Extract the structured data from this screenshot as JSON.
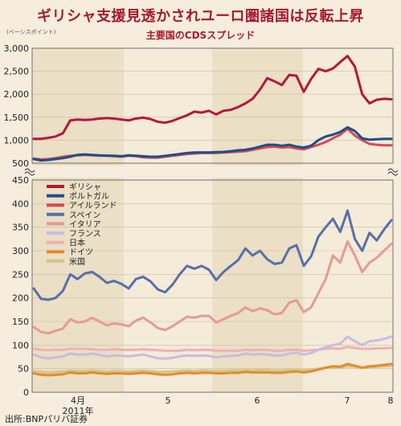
{
  "header": {
    "title": "ギリシャ支援見透かされユーロ圏諸国は反転上昇",
    "subtitle": "主要国のCDSスプレッド",
    "unit": "(ベーシスポイント)"
  },
  "footer": {
    "source": "出所:BNPパリバ証券"
  },
  "colors": {
    "background": "#f6eddf",
    "plot_band": "#ebdfc6",
    "plot_light": "#f4ebd9",
    "grid": "#c9bca3"
  },
  "chart_data": {
    "type": "line",
    "title": "主要国のCDSスプレッド",
    "ylabel": "(ベーシスポイント)",
    "x_ticks": [
      "4月",
      "5",
      "6",
      "7",
      "8"
    ],
    "x_sublabel": "2011年",
    "upper_axis": {
      "ylim": [
        500,
        3000
      ],
      "ticks": [
        "3,000",
        "2,500",
        "2,000",
        "1,500",
        "1,000",
        "500"
      ]
    },
    "lower_axis": {
      "ylim": [
        0,
        450
      ],
      "ticks": [
        "450",
        "400",
        "350",
        "300",
        "250",
        "200",
        "150",
        "100",
        "50",
        "0"
      ]
    },
    "legend_position": "top-left",
    "series": [
      {
        "name": "ギリシャ",
        "color": "#b5173a",
        "axis": "upper",
        "values": [
          1030,
          1030,
          1050,
          1080,
          1150,
          1430,
          1450,
          1440,
          1450,
          1470,
          1480,
          1470,
          1450,
          1430,
          1470,
          1490,
          1460,
          1400,
          1380,
          1420,
          1480,
          1540,
          1620,
          1600,
          1640,
          1560,
          1640,
          1660,
          1720,
          1800,
          1900,
          2100,
          2350,
          2280,
          2200,
          2420,
          2400,
          2050,
          2330,
          2550,
          2500,
          2560,
          2700,
          2830,
          2600,
          2000,
          1800,
          1880,
          1900,
          1890
        ]
      },
      {
        "name": "ポルトガル",
        "color": "#1d4f8a",
        "axis": "upper",
        "values": [
          590,
          560,
          570,
          590,
          610,
          640,
          680,
          690,
          680,
          670,
          665,
          660,
          650,
          670,
          660,
          650,
          640,
          640,
          660,
          680,
          700,
          720,
          730,
          735,
          735,
          740,
          745,
          760,
          780,
          790,
          820,
          860,
          900,
          900,
          880,
          900,
          860,
          840,
          880,
          1000,
          1080,
          1120,
          1180,
          1280,
          1200,
          1040,
          1010,
          1020,
          1030,
          1030
        ]
      },
      {
        "name": "アイルランド",
        "color": "#d84a52",
        "axis": "upper",
        "values": [
          600,
          580,
          590,
          610,
          640,
          660,
          670,
          680,
          670,
          660,
          660,
          650,
          640,
          660,
          650,
          630,
          620,
          620,
          640,
          660,
          680,
          700,
          710,
          720,
          720,
          720,
          730,
          740,
          750,
          760,
          790,
          820,
          850,
          860,
          840,
          850,
          820,
          800,
          850,
          900,
          960,
          1040,
          1120,
          1250,
          1100,
          1000,
          920,
          900,
          890,
          890
        ]
      },
      {
        "name": "スペイン",
        "color": "#5870a8",
        "axis": "lower",
        "values": [
          220,
          198,
          196,
          200,
          215,
          250,
          240,
          252,
          255,
          245,
          232,
          236,
          230,
          220,
          240,
          245,
          235,
          218,
          212,
          228,
          250,
          268,
          262,
          268,
          260,
          238,
          255,
          268,
          280,
          305,
          290,
          300,
          282,
          272,
          275,
          305,
          312,
          268,
          288,
          330,
          350,
          368,
          340,
          385,
          325,
          300,
          338,
          322,
          345,
          365
        ]
      },
      {
        "name": "イタリア",
        "color": "#e49b93",
        "axis": "lower",
        "values": [
          138,
          128,
          125,
          130,
          135,
          155,
          148,
          150,
          158,
          150,
          142,
          146,
          144,
          140,
          152,
          158,
          148,
          136,
          132,
          140,
          150,
          160,
          158,
          162,
          162,
          148,
          155,
          162,
          168,
          180,
          172,
          178,
          174,
          165,
          168,
          190,
          195,
          170,
          180,
          210,
          240,
          290,
          275,
          320,
          290,
          255,
          275,
          285,
          300,
          315
        ]
      },
      {
        "name": "フランス",
        "color": "#c6bee0",
        "axis": "lower",
        "values": [
          80,
          74,
          72,
          74,
          76,
          82,
          80,
          80,
          82,
          79,
          76,
          78,
          77,
          76,
          78,
          80,
          76,
          72,
          71,
          73,
          76,
          78,
          77,
          78,
          77,
          74,
          76,
          77,
          78,
          82,
          80,
          81,
          80,
          78,
          78,
          82,
          84,
          80,
          83,
          90,
          95,
          100,
          103,
          118,
          108,
          100,
          108,
          110,
          113,
          118
        ]
      },
      {
        "name": "日本",
        "color": "#f0afb4",
        "axis": "lower",
        "values": [
          92,
          90,
          89,
          90,
          90,
          92,
          92,
          92,
          91,
          90,
          90,
          91,
          90,
          90,
          90,
          91,
          90,
          89,
          88,
          88,
          88,
          90,
          89,
          90,
          90,
          88,
          88,
          88,
          88,
          90,
          89,
          90,
          90,
          88,
          88,
          90,
          90,
          88,
          89,
          90,
          92,
          93,
          92,
          96,
          94,
          92,
          92,
          93,
          93,
          94
        ]
      },
      {
        "name": "ドイツ",
        "color": "#e58b2b",
        "axis": "lower",
        "values": [
          40,
          37,
          36,
          37,
          38,
          42,
          40,
          40,
          42,
          40,
          39,
          40,
          40,
          39,
          40,
          41,
          40,
          38,
          37,
          38,
          40,
          41,
          40,
          41,
          41,
          40,
          40,
          41,
          41,
          43,
          42,
          42,
          42,
          41,
          41,
          43,
          44,
          42,
          44,
          48,
          52,
          55,
          54,
          60,
          56,
          52,
          55,
          56,
          58,
          60
        ]
      },
      {
        "name": "米国",
        "color": "#d1c68a",
        "axis": "lower",
        "values": [
          45,
          43,
          42,
          43,
          44,
          46,
          45,
          45,
          46,
          45,
          44,
          45,
          45,
          44,
          45,
          46,
          45,
          43,
          43,
          44,
          45,
          46,
          45,
          46,
          46,
          45,
          45,
          46,
          46,
          47,
          46,
          47,
          47,
          46,
          46,
          47,
          48,
          47,
          48,
          50,
          52,
          53,
          53,
          55,
          54,
          52,
          53,
          54,
          55,
          56
        ]
      }
    ]
  }
}
